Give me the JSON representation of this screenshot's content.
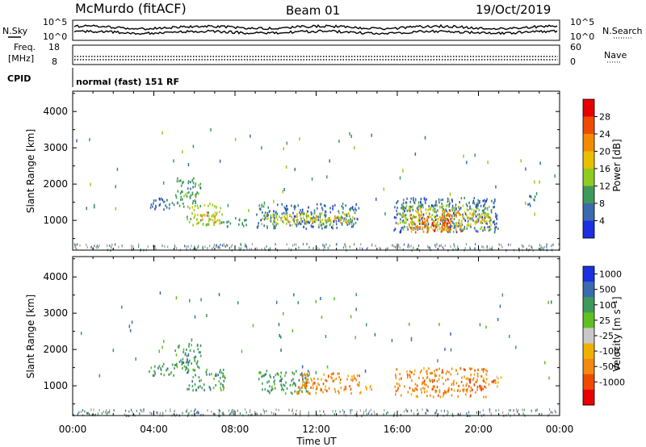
{
  "header": {
    "station": "McMurdo (fitACF)",
    "beam": "Beam 01",
    "date": "19/Oct/2019"
  },
  "panels": {
    "nsky": {
      "left_label": "N.Sky",
      "right_label": "N.Search",
      "scale_top": "10^5",
      "scale_bottom": "10^0"
    },
    "freq": {
      "left_label": "Freq.",
      "left_unit": "[MHz]",
      "left_top": "18",
      "left_bottom": "8",
      "right_label": "Nave",
      "right_top": "60",
      "right_bottom": "0"
    },
    "cpid": {
      "left_label": "CPID",
      "text": "normal (fast) 151 RF"
    }
  },
  "colorbars": {
    "power": {
      "title": "Power [dB]",
      "ticks": [
        "28",
        "24",
        "20",
        "16",
        "12",
        "8",
        "4"
      ],
      "colors": [
        "#e80000",
        "#f04a00",
        "#f48a00",
        "#e8c000",
        "#90cc20",
        "#3e9a5a",
        "#3b6aae",
        "#1a30e0"
      ]
    },
    "velocity": {
      "title": "Velocity [m s⁻¹]",
      "ticks": [
        "1000",
        "500",
        "100",
        "25",
        "-25",
        "-100",
        "-500",
        "-1000"
      ],
      "colors": [
        "#1a30e0",
        "#3b6aae",
        "#3e9a5a",
        "#60c020",
        "#c8c8c8",
        "#f0b000",
        "#f08a10",
        "#f04a00",
        "#e80000"
      ]
    }
  },
  "colors": {
    "ground_scatter": "#9a9a9a"
  },
  "chart_data": [
    {
      "type": "heatmap",
      "title": "Power",
      "xlabel": "Time UT",
      "ylabel": "Slant Range [km]",
      "xlim_hours": [
        0,
        24
      ],
      "ylim": [
        180,
        4560
      ],
      "x_ticks": [
        "00:00",
        "04:00",
        "08:00",
        "12:00",
        "16:00",
        "20:00",
        "00:00"
      ],
      "y_ticks": [
        1000,
        2000,
        3000,
        4000
      ],
      "regions": [
        {
          "t0": 0.9,
          "t1": 1.1,
          "r0": 1350,
          "r1": 1500,
          "level": 1
        },
        {
          "t0": 3.7,
          "t1": 5.0,
          "r0": 1300,
          "r1": 1650,
          "level": 1
        },
        {
          "t0": 5.0,
          "t1": 6.3,
          "r0": 1400,
          "r1": 2200,
          "level": 2
        },
        {
          "t0": 5.6,
          "t1": 7.4,
          "r0": 900,
          "r1": 1500,
          "level": 3
        },
        {
          "t0": 6.2,
          "t1": 7.0,
          "r0": 950,
          "r1": 1250,
          "level": 5
        },
        {
          "t0": 7.3,
          "t1": 8.6,
          "r0": 850,
          "r1": 1100,
          "level": 2
        },
        {
          "t0": 9.0,
          "t1": 14.1,
          "r0": 800,
          "r1": 1500,
          "level": 1
        },
        {
          "t0": 9.2,
          "t1": 13.9,
          "r0": 900,
          "r1": 1250,
          "level": 3
        },
        {
          "t0": 10.0,
          "t1": 13.5,
          "r0": 950,
          "r1": 1150,
          "level": 4
        },
        {
          "t0": 15.8,
          "t1": 21.0,
          "r0": 700,
          "r1": 1650,
          "level": 1
        },
        {
          "t0": 16.0,
          "t1": 20.6,
          "r0": 750,
          "r1": 1450,
          "level": 3
        },
        {
          "t0": 16.6,
          "t1": 19.3,
          "r0": 700,
          "r1": 1300,
          "level": 5
        },
        {
          "t0": 17.2,
          "t1": 18.6,
          "r0": 720,
          "r1": 1150,
          "level": 6
        },
        {
          "t0": 19.4,
          "t1": 20.6,
          "r0": 900,
          "r1": 1250,
          "level": 4
        },
        {
          "t0": 22.4,
          "t1": 22.8,
          "r0": 1400,
          "r1": 1700,
          "level": 1
        }
      ]
    },
    {
      "type": "heatmap",
      "title": "Velocity",
      "xlabel": "Time UT",
      "ylabel": "Slant Range [km]",
      "xlim_hours": [
        0,
        24
      ],
      "ylim": [
        180,
        4560
      ],
      "x_ticks": [
        "00:00",
        "04:00",
        "08:00",
        "12:00",
        "16:00",
        "20:00",
        "00:00"
      ],
      "y_ticks": [
        1000,
        2000,
        3000,
        4000
      ],
      "regions": [
        {
          "t0": 3.7,
          "t1": 5.0,
          "r0": 1300,
          "r1": 1650,
          "level": 2
        },
        {
          "t0": 5.0,
          "t1": 6.3,
          "r0": 1400,
          "r1": 2200,
          "level": 2
        },
        {
          "t0": 5.6,
          "t1": 7.5,
          "r0": 900,
          "r1": 1500,
          "level": 2
        },
        {
          "t0": 9.1,
          "t1": 11.6,
          "r0": 800,
          "r1": 1450,
          "level": 2
        },
        {
          "t0": 11.0,
          "t1": 14.2,
          "r0": 800,
          "r1": 1400,
          "level": 6
        },
        {
          "t0": 14.4,
          "t1": 14.8,
          "r0": 800,
          "r1": 1050,
          "level": 5
        },
        {
          "t0": 15.8,
          "t1": 20.4,
          "r0": 720,
          "r1": 1520,
          "level": 6
        },
        {
          "t0": 19.5,
          "t1": 20.8,
          "r0": 900,
          "r1": 1200,
          "level": 7
        },
        {
          "t0": 20.8,
          "t1": 21.3,
          "r0": 1000,
          "r1": 1300,
          "level": 5
        }
      ]
    }
  ]
}
